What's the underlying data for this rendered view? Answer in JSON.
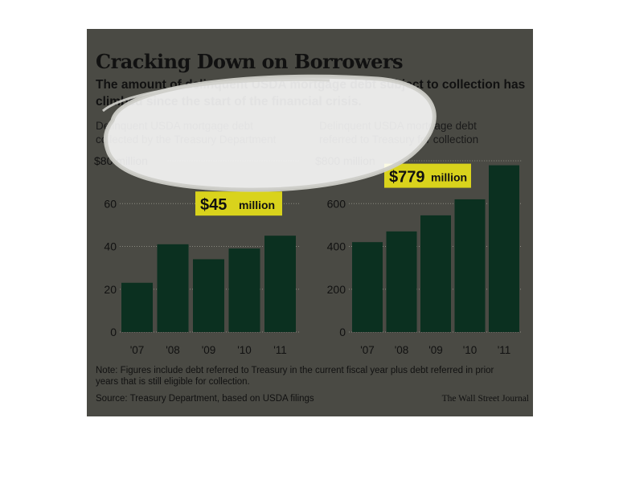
{
  "title": "Cracking Down on Borrowers",
  "subtitle": "The amount of delinquent USDA mortgage debt subject to collection has climbed since the start of the financial crisis.",
  "note": "Note: Figures include debt referred to Treasury in the current fiscal year plus debt referred in prior years that is still eligible for collection.",
  "source": "Source: Treasury Department, based on USDA filings",
  "credit": "The Wall Street Journal",
  "colors": {
    "panel": "#4a4a44",
    "bar": "#0b3020",
    "callout": "#d9d31c",
    "text": "#111111"
  },
  "chart_data": [
    {
      "type": "bar",
      "title": "Delinquent USDA mortgage debt collected by the Treasury Department",
      "title_lines": [
        "Delinquent USDA mortgage debt",
        "collected by the Treasury Department"
      ],
      "categories": [
        "'07",
        "'08",
        "'09",
        "'10",
        "'11"
      ],
      "values": [
        23,
        41,
        34,
        39,
        45
      ],
      "ylim": [
        0,
        80
      ],
      "yticks": [
        0,
        20,
        40,
        60,
        80
      ],
      "ytick_labels": [
        "0",
        "20",
        "40",
        "60",
        "$80 million"
      ],
      "callout": {
        "value": "$45",
        "unit": "million"
      },
      "grid": true
    },
    {
      "type": "bar",
      "title": "Delinquent USDA mortgage debt referred to Treasury for collection",
      "title_lines": [
        "Delinquent USDA mortgage debt",
        "referred to Treasury for collection"
      ],
      "categories": [
        "'07",
        "'08",
        "'09",
        "'10",
        "'11"
      ],
      "values": [
        420,
        470,
        545,
        620,
        779
      ],
      "ylim": [
        0,
        800
      ],
      "yticks": [
        0,
        200,
        400,
        600,
        800
      ],
      "ytick_labels": [
        "0",
        "200",
        "400",
        "600",
        "$800 million"
      ],
      "callout": {
        "value": "$779",
        "unit": "million"
      },
      "grid": true
    }
  ]
}
